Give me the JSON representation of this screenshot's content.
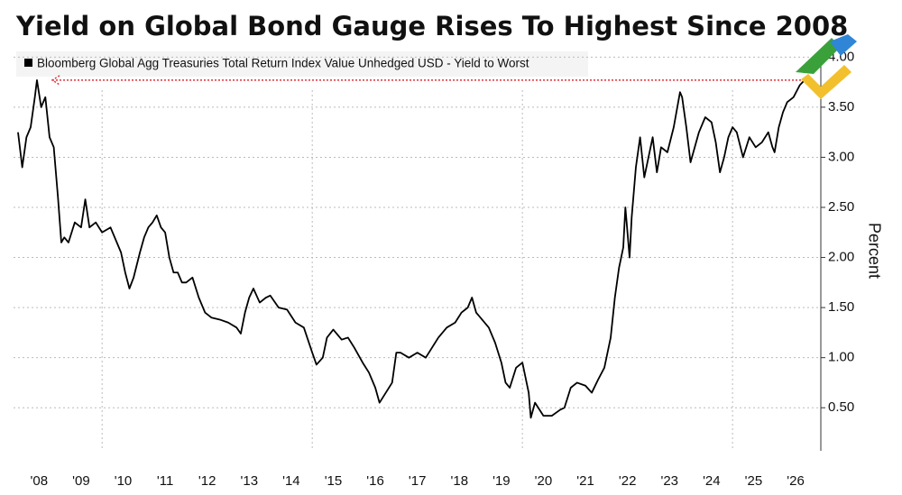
{
  "chart_data": {
    "type": "line",
    "title": "Yield on Global Bond Gauge Rises To Highest Since 2008",
    "y_label": "Percent",
    "x": [
      2008.0,
      2008.1,
      2008.2,
      2008.3,
      2008.4,
      2008.45,
      2008.55,
      2008.65,
      2008.75,
      2008.85,
      2008.95,
      2009.03,
      2009.1,
      2009.2,
      2009.35,
      2009.5,
      2009.6,
      2009.7,
      2009.85,
      2010.0,
      2010.2,
      2010.35,
      2010.45,
      2010.55,
      2010.65,
      2010.75,
      2010.9,
      2011.0,
      2011.1,
      2011.2,
      2011.3,
      2011.4,
      2011.5,
      2011.6,
      2011.7,
      2011.8,
      2011.9,
      2012.0,
      2012.15,
      2012.3,
      2012.45,
      2012.6,
      2012.8,
      2013.0,
      2013.2,
      2013.3,
      2013.4,
      2013.5,
      2013.6,
      2013.75,
      2013.9,
      2014.0,
      2014.2,
      2014.4,
      2014.6,
      2014.8,
      2015.0,
      2015.1,
      2015.25,
      2015.35,
      2015.5,
      2015.7,
      2015.85,
      2016.0,
      2016.2,
      2016.35,
      2016.5,
      2016.6,
      2016.75,
      2016.9,
      2017.0,
      2017.1,
      2017.3,
      2017.5,
      2017.7,
      2017.85,
      2018.0,
      2018.2,
      2018.4,
      2018.55,
      2018.7,
      2018.8,
      2018.9,
      2019.0,
      2019.2,
      2019.35,
      2019.5,
      2019.6,
      2019.7,
      2019.85,
      2020.0,
      2020.15,
      2020.2,
      2020.3,
      2020.5,
      2020.7,
      2020.9,
      2021.0,
      2021.15,
      2021.3,
      2021.5,
      2021.65,
      2021.8,
      2021.95,
      2022.1,
      2022.2,
      2022.3,
      2022.4,
      2022.45,
      2022.55,
      2022.6,
      2022.7,
      2022.8,
      2022.9,
      2023.0,
      2023.1,
      2023.2,
      2023.3,
      2023.45,
      2023.6,
      2023.75,
      2023.8,
      2023.9,
      2024.0,
      2024.1,
      2024.2,
      2024.35,
      2024.5,
      2024.6,
      2024.7,
      2024.8,
      2024.9,
      2025.0,
      2025.1,
      2025.25,
      2025.4,
      2025.55,
      2025.7,
      2025.85,
      2025.95,
      2026.0,
      2026.1,
      2026.2,
      2026.3,
      2026.45,
      2026.6,
      2026.78
    ],
    "series": [
      {
        "name": "Bloomberg Global Agg Treasuries Total Return Index Value Unhedged USD - Yield to Worst",
        "color": "#000000",
        "values": [
          3.25,
          2.9,
          3.2,
          3.3,
          3.6,
          3.77,
          3.5,
          3.6,
          3.2,
          3.1,
          2.6,
          2.15,
          2.2,
          2.15,
          2.35,
          2.3,
          2.58,
          2.3,
          2.35,
          2.25,
          2.3,
          2.15,
          2.05,
          1.85,
          1.69,
          1.8,
          2.05,
          2.2,
          2.3,
          2.35,
          2.42,
          2.3,
          2.25,
          2.0,
          1.85,
          1.85,
          1.75,
          1.75,
          1.8,
          1.6,
          1.45,
          1.4,
          1.38,
          1.35,
          1.3,
          1.24,
          1.45,
          1.6,
          1.69,
          1.55,
          1.6,
          1.62,
          1.5,
          1.48,
          1.35,
          1.3,
          1.05,
          0.93,
          1.0,
          1.2,
          1.28,
          1.18,
          1.2,
          1.1,
          0.95,
          0.85,
          0.7,
          0.55,
          0.65,
          0.75,
          1.05,
          1.05,
          1.0,
          1.05,
          1.0,
          1.1,
          1.2,
          1.3,
          1.35,
          1.45,
          1.5,
          1.6,
          1.45,
          1.4,
          1.3,
          1.15,
          0.95,
          0.75,
          0.7,
          0.9,
          0.95,
          0.65,
          0.4,
          0.55,
          0.42,
          0.42,
          0.48,
          0.5,
          0.7,
          0.75,
          0.72,
          0.65,
          0.78,
          0.9,
          1.2,
          1.6,
          1.9,
          2.1,
          2.5,
          2.0,
          2.4,
          2.9,
          3.2,
          2.8,
          3.0,
          3.2,
          2.85,
          3.1,
          3.05,
          3.3,
          3.65,
          3.6,
          3.3,
          2.95,
          3.1,
          3.25,
          3.4,
          3.35,
          3.15,
          2.85,
          3.0,
          3.2,
          3.3,
          3.25,
          3.0,
          3.2,
          3.1,
          3.15,
          3.25,
          3.1,
          3.05,
          3.3,
          3.45,
          3.55,
          3.6,
          3.72,
          3.8
        ]
      }
    ],
    "xlim": [
      2008,
      2027.1
    ],
    "ylim": [
      0.07,
      4.21
    ],
    "xticks": [
      {
        "value": 2008.5,
        "label": "'08"
      },
      {
        "value": 2009.5,
        "label": "'09"
      },
      {
        "value": 2010.5,
        "label": "'10"
      },
      {
        "value": 2011.5,
        "label": "'11"
      },
      {
        "value": 2012.5,
        "label": "'12"
      },
      {
        "value": 2013.5,
        "label": "'13"
      },
      {
        "value": 2014.5,
        "label": "'14"
      },
      {
        "value": 2015.5,
        "label": "'15"
      },
      {
        "value": 2016.5,
        "label": "'16"
      },
      {
        "value": 2017.5,
        "label": "'17"
      },
      {
        "value": 2018.5,
        "label": "'18"
      },
      {
        "value": 2019.5,
        "label": "'19"
      },
      {
        "value": 2020.5,
        "label": "'20"
      },
      {
        "value": 2021.5,
        "label": "'21"
      },
      {
        "value": 2022.5,
        "label": "'22"
      },
      {
        "value": 2023.5,
        "label": "'23"
      },
      {
        "value": 2024.5,
        "label": "'24"
      },
      {
        "value": 2025.5,
        "label": "'25"
      },
      {
        "value": 2026.5,
        "label": "'26"
      }
    ],
    "xgrid": [
      2010,
      2015,
      2020,
      2025
    ],
    "yticks": [
      {
        "value": 0.5,
        "label": "0.50"
      },
      {
        "value": 1.0,
        "label": "1.00"
      },
      {
        "value": 1.5,
        "label": "1.50"
      },
      {
        "value": 2.0,
        "label": "2.00"
      },
      {
        "value": 2.5,
        "label": "2.50"
      },
      {
        "value": 3.0,
        "label": "3.00"
      },
      {
        "value": 3.5,
        "label": "3.50"
      },
      {
        "value": 4.0,
        "label": "4.00"
      }
    ],
    "grid": true,
    "reference_line": {
      "value": 3.77,
      "color": "#e0303a"
    }
  }
}
